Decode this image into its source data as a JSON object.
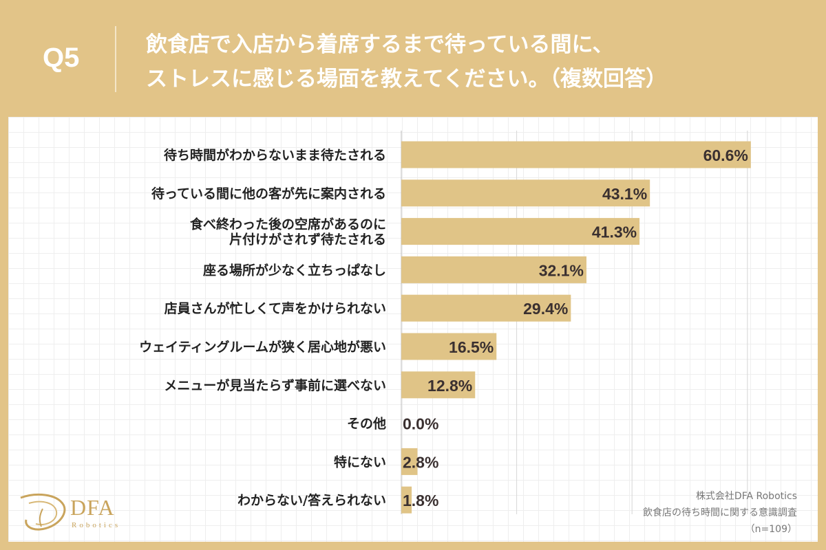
{
  "header": {
    "question_number": "Q5",
    "title_line1": "飲食店で入店から着席するまで待っている間に、",
    "title_line2": "ストレスに感じる場面を教えてください。（複数回答）"
  },
  "colors": {
    "background": "#e2c488",
    "bar": "#e0c487",
    "logo": "#c9a45c"
  },
  "chart_data": {
    "type": "bar",
    "orientation": "horizontal",
    "unit": "%",
    "xlim": [
      0,
      100
    ],
    "grid": true,
    "categories": [
      [
        "待ち時間がわからないまま待たされる"
      ],
      [
        "待っている間に他の客が先に案内される"
      ],
      [
        "食べ終わった後の空席があるのに",
        "片付けがされず待たされる"
      ],
      [
        "座る場所が少なく立ちっぱなし"
      ],
      [
        "店員さんが忙しくて声をかけられない"
      ],
      [
        "ウェイティングルームが狭く居心地が悪い"
      ],
      [
        "メニューが見当たらず事前に選べない"
      ],
      [
        "その他"
      ],
      [
        "特にない"
      ],
      [
        "わからない/答えられない"
      ]
    ],
    "values": [
      60.6,
      43.1,
      41.3,
      32.1,
      29.4,
      16.5,
      12.8,
      0.0,
      2.8,
      1.8
    ],
    "value_labels": [
      "60.6%",
      "43.1%",
      "41.3%",
      "32.1%",
      "29.4%",
      "16.5%",
      "12.8%",
      "0.0%",
      "2.8%",
      "1.8%"
    ]
  },
  "logo": {
    "name": "DFA",
    "sub": "Robotics"
  },
  "source": {
    "company": "株式会社DFA Robotics",
    "survey": "飲食店の待ち時間に関する意識調査",
    "sample": "（n=109）"
  }
}
